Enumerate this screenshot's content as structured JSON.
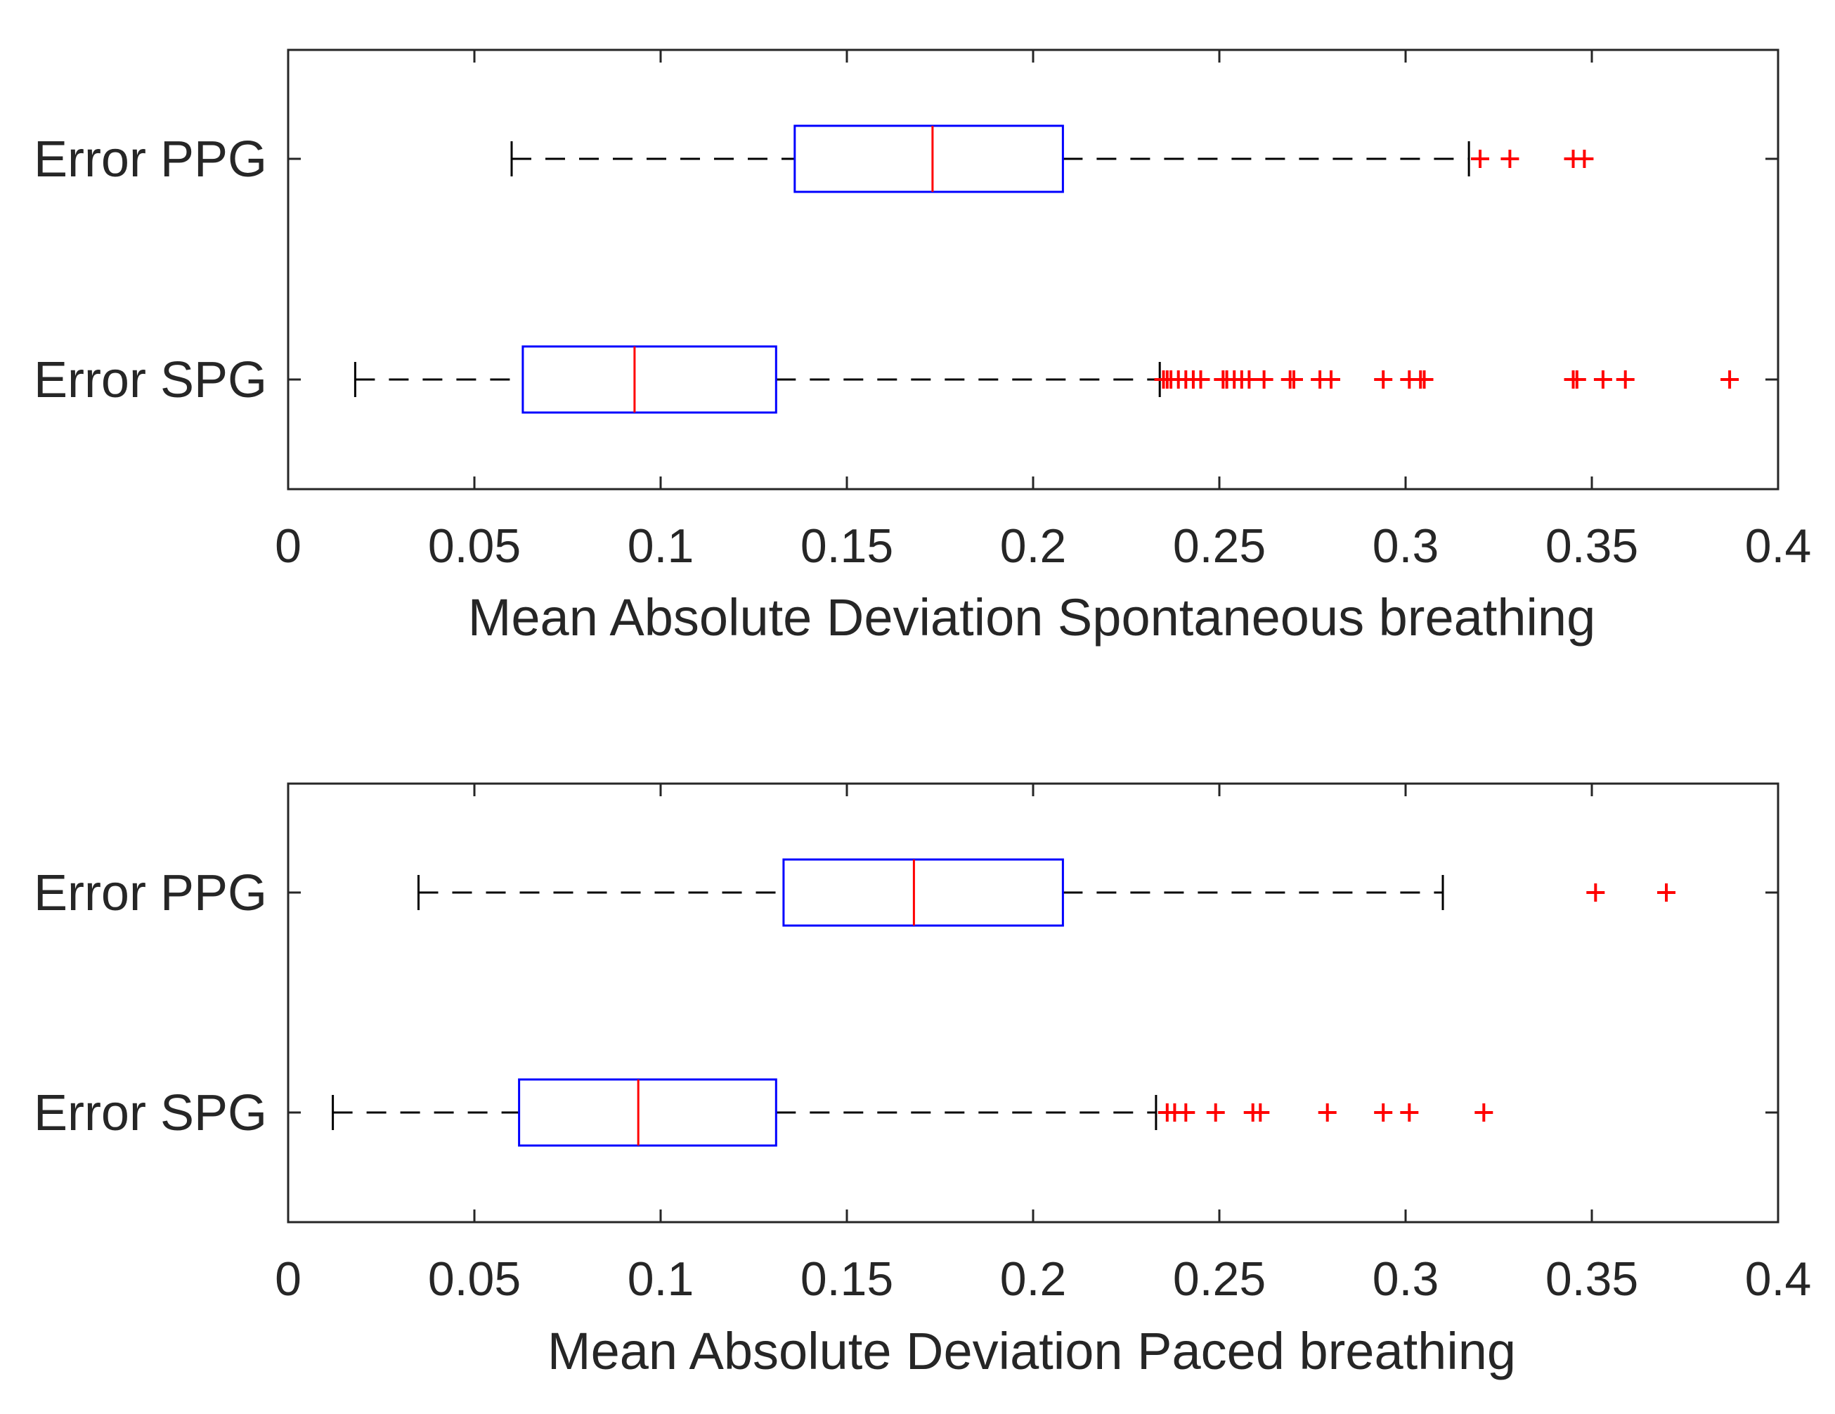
{
  "colors": {
    "axis": "#262626",
    "box": "#0000ff",
    "median": "#ff0000",
    "whisker": "#000000",
    "outlier": "#ff0000"
  },
  "chart_data": [
    {
      "type": "boxplot",
      "orientation": "horizontal",
      "xlabel": "Mean Absolute Deviation Spontaneous breathing",
      "xlim": [
        0,
        0.4
      ],
      "xticks": [
        0,
        0.05,
        0.1,
        0.15,
        0.2,
        0.25,
        0.3,
        0.35,
        0.4
      ],
      "xtick_labels": [
        "0",
        "0.05",
        "0.1",
        "0.15",
        "0.2",
        "0.25",
        "0.3",
        "0.35",
        "0.4"
      ],
      "categories": [
        "Error PPG",
        "Error SPG"
      ],
      "series": [
        {
          "name": "Error PPG",
          "whisker_low": 0.06,
          "q1": 0.136,
          "median": 0.173,
          "q3": 0.208,
          "whisker_high": 0.317,
          "outliers": [
            0.32,
            0.328,
            0.345,
            0.348
          ]
        },
        {
          "name": "Error SPG",
          "whisker_low": 0.018,
          "q1": 0.063,
          "median": 0.093,
          "q3": 0.131,
          "whisker_high": 0.234,
          "outliers": [
            0.235,
            0.236,
            0.237,
            0.239,
            0.241,
            0.243,
            0.245,
            0.251,
            0.252,
            0.254,
            0.256,
            0.258,
            0.262,
            0.269,
            0.27,
            0.277,
            0.28,
            0.294,
            0.301,
            0.304,
            0.305,
            0.345,
            0.346,
            0.353,
            0.359,
            0.387
          ]
        }
      ]
    },
    {
      "type": "boxplot",
      "orientation": "horizontal",
      "xlabel": "Mean Absolute Deviation Paced breathing",
      "xlim": [
        0,
        0.4
      ],
      "xticks": [
        0,
        0.05,
        0.1,
        0.15,
        0.2,
        0.25,
        0.3,
        0.35,
        0.4
      ],
      "xtick_labels": [
        "0",
        "0.05",
        "0.1",
        "0.15",
        "0.2",
        "0.25",
        "0.3",
        "0.35",
        "0.4"
      ],
      "categories": [
        "Error PPG",
        "Error SPG"
      ],
      "series": [
        {
          "name": "Error PPG",
          "whisker_low": 0.035,
          "q1": 0.133,
          "median": 0.168,
          "q3": 0.208,
          "whisker_high": 0.31,
          "outliers": [
            0.351,
            0.37
          ]
        },
        {
          "name": "Error SPG",
          "whisker_low": 0.012,
          "q1": 0.062,
          "median": 0.094,
          "q3": 0.131,
          "whisker_high": 0.233,
          "outliers": [
            0.236,
            0.238,
            0.241,
            0.249,
            0.259,
            0.261,
            0.279,
            0.294,
            0.301,
            0.321
          ]
        }
      ]
    }
  ]
}
